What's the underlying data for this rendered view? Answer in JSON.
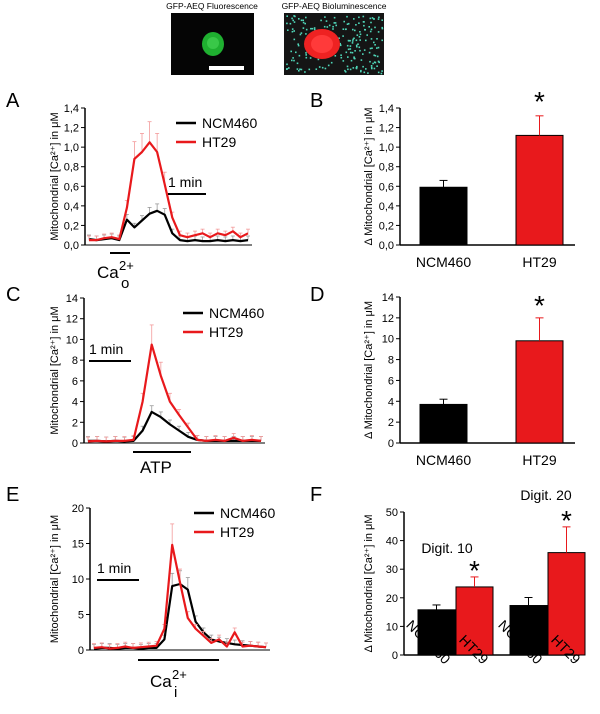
{
  "images": {
    "fluorescence_label": "GFP-AEQ Fluorescence",
    "bioluminescence_label": "GFP-AEQ Bioluminescence"
  },
  "colors": {
    "ncm460": "#000000",
    "ht29": "#e8191c"
  },
  "chart_data": [
    {
      "panel": "A",
      "type": "line",
      "xlabel": "",
      "ylabel": "Mitochondrial [Ca²⁺] in μM",
      "ylim": [
        0,
        1.4
      ],
      "yticks": [
        "0,0",
        "0,2",
        "0,4",
        "0,6",
        "0,8",
        "1,0",
        "1,2",
        "1,4"
      ],
      "legend": [
        "NCM460",
        "HT29"
      ],
      "scale_bar": "1 min",
      "stimulus": {
        "main": "Ca",
        "sup": "2+",
        "sub": "o"
      },
      "series": [
        {
          "name": "NCM460",
          "values": [
            0.06,
            0.05,
            0.06,
            0.07,
            0.05,
            0.26,
            0.18,
            0.25,
            0.32,
            0.35,
            0.31,
            0.12,
            0.05,
            0.04,
            0.05,
            0.04,
            0.04,
            0.05,
            0.04,
            0.05,
            0.04,
            0.05
          ]
        },
        {
          "name": "HT29",
          "values": [
            0.05,
            0.05,
            0.07,
            0.08,
            0.06,
            0.38,
            0.88,
            0.95,
            1.05,
            0.95,
            0.62,
            0.28,
            0.1,
            0.08,
            0.1,
            0.12,
            0.08,
            0.12,
            0.1,
            0.14,
            0.08,
            0.12
          ]
        }
      ]
    },
    {
      "panel": "B",
      "type": "bar",
      "ylabel": "Δ Mitochondrial [Ca²⁺] in μM",
      "ylim": [
        0,
        1.4
      ],
      "yticks": [
        "0,0",
        "0,2",
        "0,4",
        "0,6",
        "0,8",
        "1,0",
        "1,2",
        "1,4"
      ],
      "categories": [
        "NCM460",
        "HT29"
      ],
      "values": [
        0.59,
        1.12
      ],
      "errors": [
        0.07,
        0.2
      ],
      "significance": [
        "",
        "*"
      ]
    },
    {
      "panel": "C",
      "type": "line",
      "ylabel": "Mitochondrial [Ca²⁺] in μM",
      "ylim": [
        0,
        14
      ],
      "yticks": [
        "0",
        "2",
        "4",
        "6",
        "8",
        "10",
        "12",
        "14"
      ],
      "legend": [
        "NCM460",
        "HT29"
      ],
      "scale_bar": "1 min",
      "stimulus": {
        "main": "ATP"
      },
      "series": [
        {
          "name": "NCM460",
          "values": [
            0.2,
            0.2,
            0.15,
            0.2,
            0.15,
            0.2,
            1.2,
            3.0,
            2.5,
            1.8,
            1.2,
            0.6,
            0.3,
            0.2,
            0.2,
            0.2,
            0.2,
            0.2,
            0.2,
            0.2
          ]
        },
        {
          "name": "HT29",
          "values": [
            0.15,
            0.2,
            0.15,
            0.2,
            0.2,
            0.3,
            4.0,
            9.5,
            6.5,
            4.0,
            2.7,
            1.5,
            0.3,
            0.2,
            0.3,
            0.2,
            0.5,
            0.2,
            0.3,
            0.2
          ]
        }
      ]
    },
    {
      "panel": "D",
      "type": "bar",
      "ylabel": "Δ Mitochondrial [Ca²⁺] in μM",
      "ylim": [
        0,
        14
      ],
      "yticks": [
        "0",
        "2",
        "4",
        "6",
        "8",
        "10",
        "12",
        "14"
      ],
      "categories": [
        "NCM460",
        "HT29"
      ],
      "values": [
        3.7,
        9.8
      ],
      "errors": [
        0.5,
        2.2
      ],
      "significance": [
        "",
        "*"
      ]
    },
    {
      "panel": "E",
      "type": "line",
      "ylabel": "Mitochondrial [Ca²⁺] in μM",
      "ylim": [
        0,
        20
      ],
      "yticks": [
        "0",
        "5",
        "10",
        "15",
        "20"
      ],
      "legend": [
        "NCM460",
        "HT29"
      ],
      "scale_bar": "1 min",
      "stimulus": {
        "main": "Ca",
        "sup": "2+",
        "sub": "i"
      },
      "series": [
        {
          "name": "NCM460",
          "values": [
            0.2,
            0.3,
            0.3,
            0.2,
            0.3,
            0.3,
            0.2,
            0.3,
            0.3,
            1.5,
            9.0,
            9.3,
            8.5,
            4.0,
            2.5,
            1.5,
            1.2,
            1.0,
            0.8,
            0.7,
            0.6,
            0.5,
            0.4
          ]
        },
        {
          "name": "HT29",
          "values": [
            0.3,
            0.4,
            0.2,
            0.3,
            0.5,
            0.3,
            0.4,
            0.5,
            0.6,
            3.0,
            14.8,
            9.5,
            4.5,
            3.0,
            2.0,
            1.0,
            1.5,
            0.5,
            2.5,
            0.5,
            0.6,
            0.5,
            0.4
          ]
        }
      ]
    },
    {
      "panel": "F",
      "type": "bar",
      "ylabel": "Δ Mitochondrial [Ca²⁺] in μM",
      "ylim": [
        0,
        50
      ],
      "yticks": [
        "0",
        "10",
        "20",
        "30",
        "40",
        "50"
      ],
      "groups": [
        "Digit. 10",
        "Digit. 20"
      ],
      "categories": [
        "NCM460",
        "HT29",
        "NCM460",
        "HT29"
      ],
      "values": [
        15.8,
        23.8,
        17.3,
        35.8
      ],
      "errors": [
        1.7,
        3.5,
        2.8,
        9.0
      ],
      "significance": [
        "",
        "*",
        "",
        "*"
      ]
    }
  ]
}
